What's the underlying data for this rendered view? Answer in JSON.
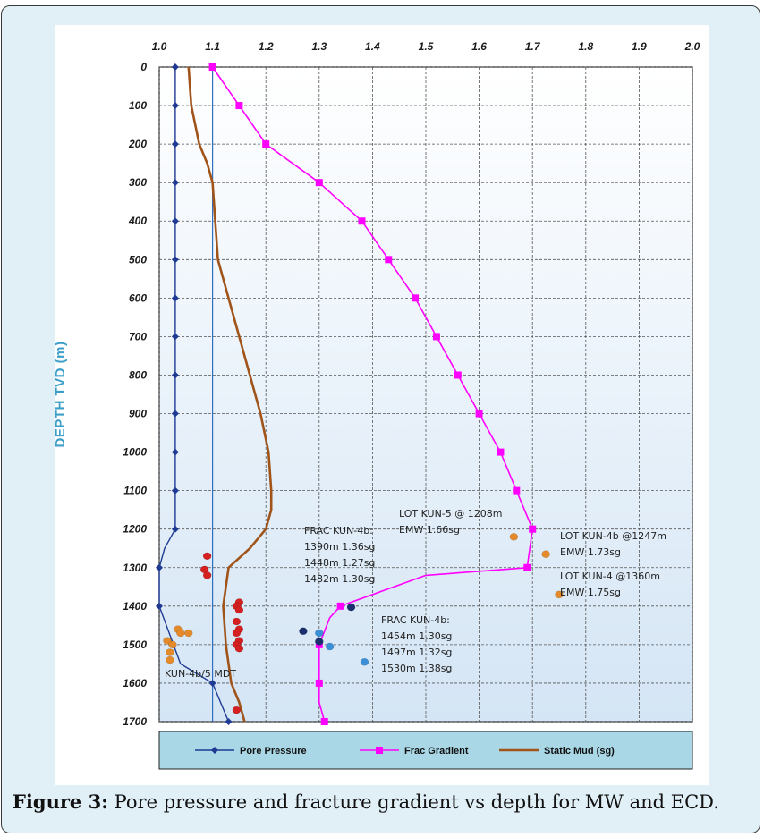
{
  "caption": {
    "label": "Figure 3:",
    "text": " Pore pressure and fracture gradient vs depth for MW and ECD."
  },
  "chart_data": {
    "type": "line",
    "title": "",
    "xlabel": "",
    "ylabel": "DEPTH TVD (m)",
    "xlim": [
      1.0,
      2.0
    ],
    "ylim": [
      0,
      1700
    ],
    "y_inverted": true,
    "x_axis_position": "top",
    "grid": true,
    "x_ticks": [
      "1.0",
      "1.1",
      "1.2",
      "1.3",
      "1.4",
      "1.5",
      "1.6",
      "1.7",
      "1.8",
      "1.9",
      "2.0"
    ],
    "y_ticks": [
      "0",
      "100",
      "200",
      "300",
      "400",
      "500",
      "600",
      "700",
      "800",
      "900",
      "1000",
      "1100",
      "1200",
      "1300",
      "1400",
      "1500",
      "1600",
      "1700"
    ],
    "reference_line_x": 1.1,
    "legend_position": "bottom",
    "series": [
      {
        "name": "Pore Pressure",
        "color": "#1f3a93",
        "marker": "diamond",
        "x": [
          1.03,
          1.03,
          1.03,
          1.03,
          1.03,
          1.03,
          1.03,
          1.03,
          1.03,
          1.03,
          1.03,
          1.03,
          1.03,
          1.01,
          1.0,
          1.0,
          1.04,
          1.1,
          1.13
        ],
        "y": [
          0,
          100,
          200,
          300,
          400,
          500,
          600,
          700,
          800,
          900,
          1000,
          1100,
          1200,
          1250,
          1300,
          1400,
          1550,
          1600,
          1700
        ]
      },
      {
        "name": "Frac Gradient",
        "color": "#ff00ff",
        "marker": "square",
        "x": [
          1.1,
          1.15,
          1.2,
          1.3,
          1.38,
          1.43,
          1.48,
          1.52,
          1.56,
          1.6,
          1.64,
          1.67,
          1.7,
          1.69,
          1.5,
          1.34,
          1.32,
          1.3,
          1.3,
          1.3,
          1.31
        ],
        "y": [
          0,
          100,
          200,
          300,
          400,
          500,
          600,
          700,
          800,
          900,
          1000,
          1100,
          1200,
          1300,
          1320,
          1400,
          1430,
          1500,
          1600,
          1650,
          1700
        ]
      },
      {
        "name": "Static Mud (sg)",
        "color": "#a0541a",
        "marker": "none",
        "x": [
          1.055,
          1.06,
          1.075,
          1.09,
          1.1,
          1.11,
          1.13,
          1.15,
          1.17,
          1.19,
          1.205,
          1.21,
          1.21,
          1.2,
          1.17,
          1.13,
          1.12,
          1.125,
          1.135,
          1.15,
          1.16
        ],
        "y": [
          0,
          100,
          200,
          250,
          300,
          500,
          600,
          700,
          800,
          900,
          1000,
          1100,
          1150,
          1200,
          1250,
          1300,
          1400,
          1500,
          1600,
          1650,
          1700
        ]
      }
    ],
    "scatter_groups": [
      {
        "name": "red",
        "color": "#d42020",
        "points": [
          [
            1.09,
            1270
          ],
          [
            1.085,
            1305
          ],
          [
            1.09,
            1320
          ],
          [
            1.15,
            1390
          ],
          [
            1.145,
            1400
          ],
          [
            1.15,
            1410
          ],
          [
            1.145,
            1440
          ],
          [
            1.15,
            1460
          ],
          [
            1.145,
            1470
          ],
          [
            1.15,
            1490
          ],
          [
            1.145,
            1500
          ],
          [
            1.15,
            1510
          ],
          [
            1.145,
            1670
          ]
        ]
      },
      {
        "name": "orange",
        "color": "#e48a2a",
        "points": [
          [
            1.035,
            1460
          ],
          [
            1.04,
            1470
          ],
          [
            1.055,
            1470
          ],
          [
            1.015,
            1490
          ],
          [
            1.025,
            1500
          ],
          [
            1.02,
            1520
          ],
          [
            1.02,
            1540
          ],
          [
            1.665,
            1220
          ],
          [
            1.725,
            1265
          ],
          [
            1.75,
            1370
          ]
        ]
      },
      {
        "name": "blue",
        "color": "#3a8fd6",
        "points": [
          [
            1.3,
            1470
          ],
          [
            1.32,
            1505
          ],
          [
            1.385,
            1545
          ]
        ]
      },
      {
        "name": "navy",
        "color": "#1a2f6e",
        "points": [
          [
            1.27,
            1465
          ],
          [
            1.3,
            1492
          ],
          [
            1.36,
            1403
          ]
        ]
      }
    ],
    "annotations": [
      {
        "id": "lot-kun5",
        "lines": [
          "LOT KUN-5 @ 1208m",
          "EMW 1.66sg"
        ]
      },
      {
        "id": "frac-kun4b-a",
        "lines": [
          "FRAC KUN-4b:",
          "1390m  1.36sg",
          "1448m  1.27sg",
          "1482m  1.30sg"
        ]
      },
      {
        "id": "lot-kun4b",
        "lines": [
          "LOT KUN-4b @1247m",
          "EMW 1.73sg"
        ]
      },
      {
        "id": "lot-kun4",
        "lines": [
          "LOT KUN-4 @1360m",
          "EMW 1.75sg"
        ]
      },
      {
        "id": "frac-kun4b-b",
        "lines": [
          "FRAC KUN-4b:",
          "1454m  1.30sg",
          "1497m  1.32sg",
          "1530m  1.38sg"
        ]
      },
      {
        "id": "mdt",
        "lines": [
          "KUN-4b/5  MDT"
        ]
      }
    ]
  }
}
